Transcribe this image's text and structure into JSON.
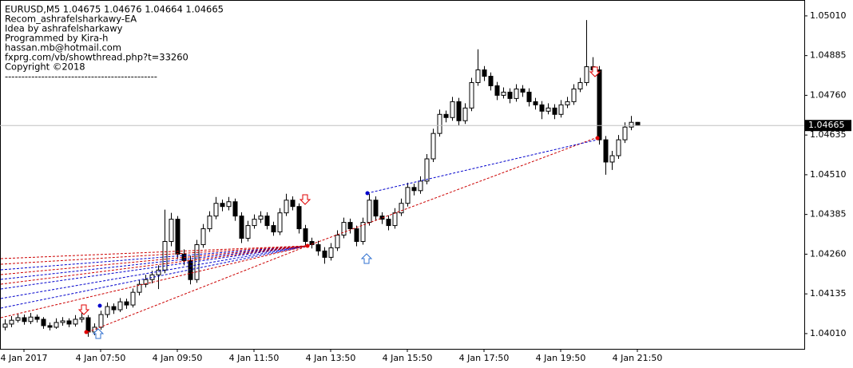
{
  "chart_data": {
    "type": "candlestick",
    "info": [
      "EURUSD,M5  1.04675 1.04676 1.04664 1.04665",
      "Recom_ashrafelsharkawy-EA",
      "Idea by ashrafelsharkawy",
      "Programmed by Kira-h",
      "hassan.mb@hotmail.com",
      "fxprg.com/vb/showthread.php?t=33260",
      "Copyright ©2018",
      "----------------------------------------------"
    ],
    "ylim": [
      1.03962,
      1.0506
    ],
    "yticks": [
      {
        "value": 1.0501,
        "label": "1.05010"
      },
      1.04885,
      {
        "value": 1.0476,
        "label": "1.04760"
      },
      1.04635,
      {
        "value": 1.0451,
        "label": "1.04510"
      },
      1.04385,
      {
        "value": 1.0426,
        "label": "1.04260"
      },
      1.04135,
      {
        "value": 1.0401,
        "label": "1.04010"
      }
    ],
    "xlim": [
      -0.75,
      125.125
    ],
    "xticks": [
      {
        "value": 3,
        "label": "4 Jan 2017"
      },
      {
        "value": 15,
        "label": "4 Jan 07:50"
      },
      {
        "value": 27,
        "label": "4 Jan 09:50"
      },
      {
        "value": 39,
        "label": "4 Jan 11:50"
      },
      {
        "value": 51,
        "label": "4 Jan 13:50"
      },
      {
        "value": 63,
        "label": "4 Jan 15:50"
      },
      {
        "value": 75,
        "label": "4 Jan 17:50"
      },
      {
        "value": 87,
        "label": "4 Jan 19:50"
      },
      {
        "value": 99,
        "label": "4 Jan 21:50"
      }
    ],
    "current_price": 1.04665,
    "up_color": "#ffffff",
    "down_color": "#000000",
    "line_color": "#000000",
    "price_line_color": "#c0c0c0",
    "candles": [
      [
        1.0403,
        1.04055,
        1.0402,
        1.0404
      ],
      [
        1.0404,
        1.04065,
        1.0403,
        1.04052
      ],
      [
        1.04052,
        1.04072,
        1.04045,
        1.0406
      ],
      [
        1.0406,
        1.0407,
        1.04038,
        1.04048
      ],
      [
        1.04048,
        1.04075,
        1.0404,
        1.04062
      ],
      [
        1.04062,
        1.0407,
        1.04045,
        1.04055
      ],
      [
        1.04055,
        1.04062,
        1.04025,
        1.04035
      ],
      [
        1.04035,
        1.04045,
        1.0402,
        1.0403
      ],
      [
        1.0403,
        1.04058,
        1.04025,
        1.04045
      ],
      [
        1.04045,
        1.04062,
        1.04035,
        1.0405
      ],
      [
        1.0405,
        1.04058,
        1.0403,
        1.0404
      ],
      [
        1.0404,
        1.04068,
        1.04032,
        1.04055
      ],
      [
        1.04055,
        1.04075,
        1.04045,
        1.0406
      ],
      [
        1.0406,
        1.04068,
        1.04,
        1.04015
      ],
      [
        1.04015,
        1.04042,
        1.04005,
        1.0403
      ],
      [
        1.0403,
        1.04082,
        1.04022,
        1.0407
      ],
      [
        1.0407,
        1.04108,
        1.0406,
        1.04095
      ],
      [
        1.04095,
        1.04105,
        1.04072,
        1.04085
      ],
      [
        1.04085,
        1.04122,
        1.04078,
        1.0411
      ],
      [
        1.0411,
        1.0412,
        1.04088,
        1.041
      ],
      [
        1.041,
        1.04152,
        1.04092,
        1.0414
      ],
      [
        1.0414,
        1.04178,
        1.0413,
        1.04165
      ],
      [
        1.04165,
        1.04195,
        1.04155,
        1.0418
      ],
      [
        1.0418,
        1.04208,
        1.04168,
        1.04195
      ],
      [
        1.04195,
        1.04225,
        1.0415,
        1.0421
      ],
      [
        1.0421,
        1.044,
        1.042,
        1.043
      ],
      [
        1.043,
        1.0439,
        1.04285,
        1.0437
      ],
      [
        1.0437,
        1.0438,
        1.04245,
        1.0426
      ],
      [
        1.0426,
        1.04275,
        1.04225,
        1.0424
      ],
      [
        1.0424,
        1.04255,
        1.04165,
        1.0418
      ],
      [
        1.0418,
        1.04305,
        1.0417,
        1.0429
      ],
      [
        1.0429,
        1.04355,
        1.0428,
        1.0434
      ],
      [
        1.0434,
        1.04395,
        1.0433,
        1.0438
      ],
      [
        1.0438,
        1.0444,
        1.0437,
        1.0442
      ],
      [
        1.0442,
        1.04432,
        1.04395,
        1.0441
      ],
      [
        1.0441,
        1.0444,
        1.04398,
        1.04425
      ],
      [
        1.04425,
        1.04435,
        1.04365,
        1.0438
      ],
      [
        1.0438,
        1.04392,
        1.04295,
        1.0431
      ],
      [
        1.0431,
        1.04365,
        1.043,
        1.0435
      ],
      [
        1.0435,
        1.04385,
        1.0434,
        1.0437
      ],
      [
        1.0437,
        1.04395,
        1.04358,
        1.0438
      ],
      [
        1.0438,
        1.04392,
        1.04338,
        1.0435
      ],
      [
        1.0435,
        1.04362,
        1.04318,
        1.0433
      ],
      [
        1.0433,
        1.04405,
        1.0432,
        1.0439
      ],
      [
        1.0439,
        1.0445,
        1.0438,
        1.0443
      ],
      [
        1.0443,
        1.04442,
        1.04398,
        1.0441
      ],
      [
        1.0441,
        1.0442,
        1.04325,
        1.0434
      ],
      [
        1.0434,
        1.04352,
        1.04288,
        1.043
      ],
      [
        1.043,
        1.04312,
        1.04278,
        1.0429
      ],
      [
        1.0429,
        1.04302,
        1.04255,
        1.0427
      ],
      [
        1.0427,
        1.04282,
        1.0423,
        1.0425
      ],
      [
        1.0425,
        1.04295,
        1.0424,
        1.0428
      ],
      [
        1.0428,
        1.04335,
        1.0427,
        1.0432
      ],
      [
        1.0432,
        1.04375,
        1.0431,
        1.0436
      ],
      [
        1.0436,
        1.04372,
        1.04325,
        1.0434
      ],
      [
        1.0434,
        1.0435,
        1.04285,
        1.043
      ],
      [
        1.043,
        1.04375,
        1.0429,
        1.0436
      ],
      [
        1.0436,
        1.0445,
        1.0435,
        1.0443
      ],
      [
        1.0443,
        1.04442,
        1.04365,
        1.0438
      ],
      [
        1.0438,
        1.04392,
        1.04355,
        1.0437
      ],
      [
        1.0437,
        1.04382,
        1.04335,
        1.0435
      ],
      [
        1.0435,
        1.04405,
        1.0434,
        1.0439
      ],
      [
        1.0439,
        1.04435,
        1.0438,
        1.0442
      ],
      [
        1.0442,
        1.04485,
        1.0441,
        1.0447
      ],
      [
        1.0447,
        1.04482,
        1.04445,
        1.0446
      ],
      [
        1.0446,
        1.04505,
        1.0445,
        1.0449
      ],
      [
        1.0449,
        1.04575,
        1.0448,
        1.0456
      ],
      [
        1.0456,
        1.04655,
        1.0455,
        1.0464
      ],
      [
        1.0464,
        1.04715,
        1.0463,
        1.047
      ],
      [
        1.047,
        1.04712,
        1.04675,
        1.0469
      ],
      [
        1.0469,
        1.04755,
        1.0468,
        1.0474
      ],
      [
        1.0474,
        1.04752,
        1.04665,
        1.0468
      ],
      [
        1.0468,
        1.04735,
        1.0467,
        1.0472
      ],
      [
        1.0472,
        1.04815,
        1.0471,
        1.048
      ],
      [
        1.048,
        1.04905,
        1.0479,
        1.0484
      ],
      [
        1.0484,
        1.04852,
        1.04805,
        1.0482
      ],
      [
        1.0482,
        1.04832,
        1.04775,
        1.0479
      ],
      [
        1.0479,
        1.04802,
        1.04745,
        1.0476
      ],
      [
        1.0476,
        1.04785,
        1.0475,
        1.0477
      ],
      [
        1.0477,
        1.04782,
        1.04735,
        1.0475
      ],
      [
        1.0475,
        1.04795,
        1.0474,
        1.0478
      ],
      [
        1.0478,
        1.04792,
        1.04755,
        1.0477
      ],
      [
        1.0477,
        1.04782,
        1.04725,
        1.0474
      ],
      [
        1.0474,
        1.04752,
        1.04715,
        1.0473
      ],
      [
        1.0473,
        1.04742,
        1.04685,
        1.0471
      ],
      [
        1.0471,
        1.04735,
        1.047,
        1.0472
      ],
      [
        1.0472,
        1.04732,
        1.04685,
        1.047
      ],
      [
        1.047,
        1.04745,
        1.0469,
        1.0473
      ],
      [
        1.0473,
        1.04755,
        1.0472,
        1.0474
      ],
      [
        1.0474,
        1.04795,
        1.0473,
        1.0478
      ],
      [
        1.0478,
        1.04815,
        1.0477,
        1.048
      ],
      [
        1.048,
        1.04997,
        1.0479,
        1.0485
      ],
      [
        1.0485,
        1.0488,
        1.04825,
        1.0484
      ],
      [
        1.0484,
        1.04852,
        1.04605,
        1.0462
      ],
      [
        1.0462,
        1.04632,
        1.0451,
        1.0455
      ],
      [
        1.0455,
        1.04585,
        1.04525,
        1.0457
      ],
      [
        1.0457,
        1.04635,
        1.0456,
        1.0462
      ],
      [
        1.0462,
        1.04675,
        1.0461,
        1.0466
      ],
      [
        1.0466,
        1.04695,
        1.0465,
        1.04675
      ],
      [
        1.04675,
        1.04676,
        1.04664,
        1.04665
      ]
    ]
  }
}
